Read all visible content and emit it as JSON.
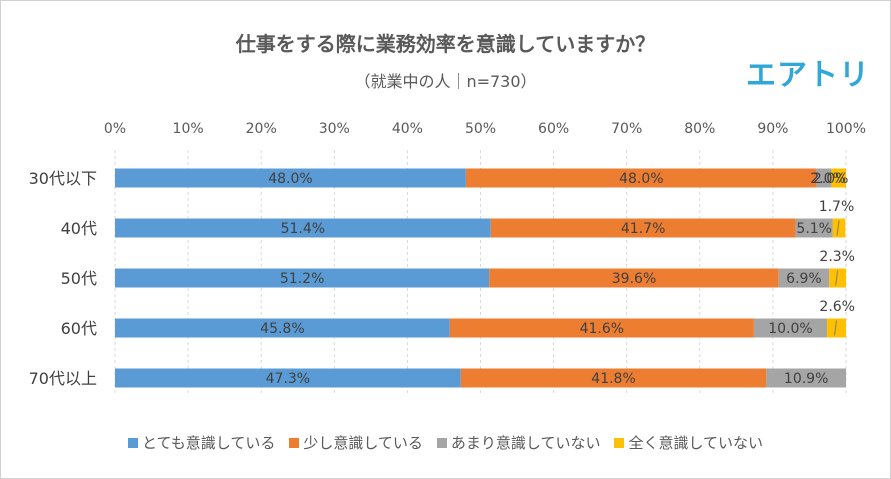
{
  "chart_data": {
    "type": "bar",
    "orientation": "horizontal",
    "stacked": "percent",
    "title": "仕事をする際に業務効率を意識していますか？",
    "subtitle": "（就業中の人｜n=730）",
    "categories": [
      "30代以下",
      "40代",
      "50代",
      "60代",
      "70代以上"
    ],
    "series": [
      {
        "name": "とても意識している",
        "color": "#5b9bd5",
        "values": [
          48.0,
          51.4,
          51.2,
          45.8,
          47.3
        ],
        "labels": [
          "48.0%",
          "51.4%",
          "51.2%",
          "45.8%",
          "47.3%"
        ]
      },
      {
        "name": "少し意識している",
        "color": "#ed7d31",
        "values": [
          48.0,
          41.7,
          39.6,
          41.6,
          41.8
        ],
        "labels": [
          "48.0%",
          "41.7%",
          "39.6%",
          "41.6%",
          "41.8%"
        ]
      },
      {
        "name": "あまり意識していない",
        "color": "#a5a5a5",
        "values": [
          2.0,
          5.1,
          6.9,
          10.0,
          10.9
        ],
        "labels": [
          "2.0%",
          "5.1%",
          "6.9%",
          "10.0%",
          "10.9%"
        ]
      },
      {
        "name": "全く意識していない",
        "color": "#ffc000",
        "values": [
          2.0,
          1.7,
          2.3,
          2.6,
          0.0
        ],
        "labels": [
          "2.0%",
          "1.7%",
          "2.3%",
          "2.6%",
          ""
        ]
      }
    ],
    "x_ticks": [
      "0%",
      "10%",
      "20%",
      "30%",
      "40%",
      "50%",
      "60%",
      "70%",
      "80%",
      "90%",
      "100%"
    ],
    "xlim": [
      0,
      100
    ],
    "grid": "vertical-dashed",
    "legend": "bottom"
  },
  "logo": {
    "text": "エアトリ",
    "color": "#2fa8d8"
  }
}
